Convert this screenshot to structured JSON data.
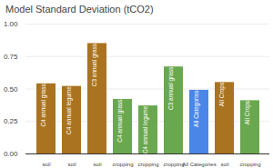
{
  "chart_data": {
    "type": "bar",
    "title": "Model Standard Deviation (tCO2)",
    "categories": [
      "soil",
      "soil",
      "soil",
      "cropping",
      "cropping",
      "cropping",
      "All Categories",
      "soil",
      "cropping"
    ],
    "values": [
      0.54,
      0.52,
      0.85,
      0.42,
      0.37,
      0.67,
      0.49,
      0.55,
      0.41
    ],
    "annotations": [
      "C4 annual grass",
      "C4 annual legume",
      "C3 annual grass",
      "C4 annual grass",
      "C4 annual legume",
      "C3 annual grass",
      "All Categories",
      "All Crops",
      "All Crops"
    ],
    "colors": [
      "#a9731f",
      "#a9731f",
      "#a9731f",
      "#6aa84f",
      "#6aa84f",
      "#6aa84f",
      "#4a86e8",
      "#a9731f",
      "#6aa84f"
    ],
    "ylim": [
      0,
      1
    ],
    "yticks": [
      {
        "value": 0,
        "label": "0.00"
      },
      {
        "value": 0.25,
        "label": "0.25"
      },
      {
        "value": 0.5,
        "label": "0.50"
      },
      {
        "value": 0.75,
        "label": "0.75"
      },
      {
        "value": 1,
        "label": "1.00"
      }
    ],
    "grid": true
  }
}
